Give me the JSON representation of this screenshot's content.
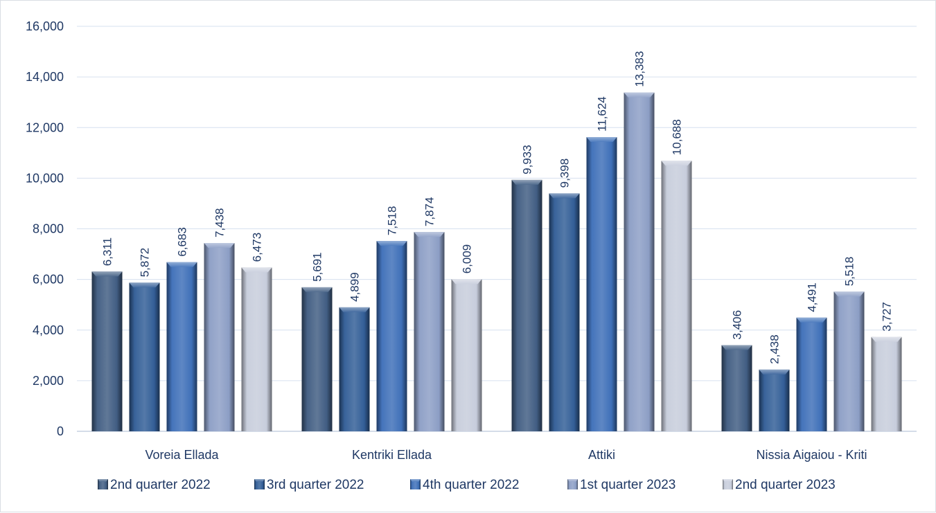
{
  "chart_data": {
    "type": "bar",
    "title": "",
    "xlabel": "",
    "ylabel": "",
    "categories": [
      "Voreia Ellada",
      "Kentriki Ellada",
      "Attiki",
      "Nissia Aigaiou - Kriti"
    ],
    "series": [
      {
        "name": "2nd quarter 2022",
        "values": [
          6311,
          5691,
          9933,
          3406
        ],
        "labels": [
          "6,311",
          "5,691",
          "9,933",
          "3,406"
        ],
        "color": "#3d5a80"
      },
      {
        "name": "3rd quarter 2022",
        "values": [
          5872,
          4899,
          9398,
          2438
        ],
        "labels": [
          "5,872",
          "4,899",
          "9,398",
          "2,438"
        ],
        "color": "#2f5b95"
      },
      {
        "name": "4th quarter 2022",
        "values": [
          6683,
          7518,
          11624,
          4491
        ],
        "labels": [
          "6,683",
          "7,518",
          "11,624",
          "4,491"
        ],
        "color": "#3b6db7"
      },
      {
        "name": "1st quarter 2023",
        "values": [
          7438,
          7874,
          13383,
          5518
        ],
        "labels": [
          "7,438",
          "7,874",
          "13,383",
          "5,518"
        ],
        "color": "#8a9cc4"
      },
      {
        "name": "2nd quarter 2023",
        "values": [
          6473,
          6009,
          10688,
          3727
        ],
        "labels": [
          "6,473",
          "6,009",
          "10,688",
          "3,727"
        ],
        "color": "#c6ccdb"
      }
    ],
    "ylim": [
      0,
      16000
    ],
    "yticks": [
      0,
      2000,
      4000,
      6000,
      8000,
      10000,
      12000,
      14000,
      16000
    ],
    "ytick_labels": [
      "0",
      "2,000",
      "4,000",
      "6,000",
      "8,000",
      "10,000",
      "12,000",
      "14,000",
      "16,000"
    ],
    "grid": true,
    "legend_position": "bottom",
    "text_color": "#1f3864",
    "grid_color": "#d6e0ef"
  }
}
